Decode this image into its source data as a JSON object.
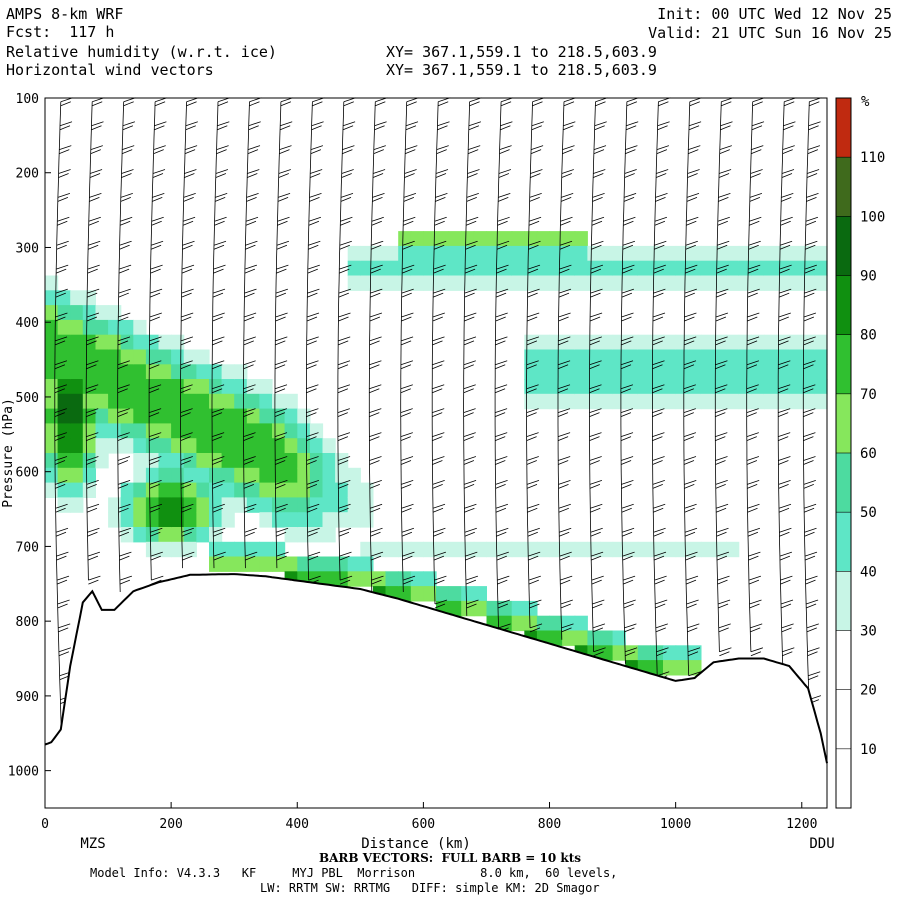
{
  "header": {
    "model": "AMPS 8-km WRF",
    "fcst": "Fcst:  117 h",
    "field1": "Relative humidity (w.r.t. ice)",
    "field2": "Horizontal wind vectors",
    "init": "Init: 00 UTC Wed 12 Nov 25",
    "valid": "Valid: 21 UTC Sun 16 Nov 25",
    "xy1": "XY= 367.1,559.1 to 218.5,603.9",
    "xy2": "XY= 367.1,559.1 to 218.5,603.9"
  },
  "chart_data": {
    "type": "heatmap",
    "title": "Relative humidity (w.r.t. ice) cross-section with horizontal wind barbs",
    "xlabel": "Distance (km)",
    "ylabel": "Pressure (hPa)",
    "xlim": [
      0,
      1240
    ],
    "ylim": [
      1050,
      100
    ],
    "x_ticks": [
      0,
      200,
      400,
      600,
      800,
      1000,
      1200
    ],
    "y_ticks": [
      100,
      200,
      300,
      400,
      500,
      600,
      700,
      800,
      900,
      1000
    ],
    "x_endpoints": {
      "left": "MZS",
      "right": "DDU"
    },
    "colorbar": {
      "unit": "%",
      "levels": [
        10,
        20,
        30,
        40,
        50,
        60,
        70,
        80,
        90,
        100,
        110
      ],
      "colors": [
        "#ffffff",
        "#ffffff",
        "#ffffff",
        "#c8f5e6",
        "#5ee6c6",
        "#4ddba0",
        "#86e75c",
        "#30c030",
        "#109010",
        "#0a6a10",
        "#3f6a1c",
        "#c02a10"
      ]
    },
    "terrain_hpa": [
      [
        0,
        965
      ],
      [
        10,
        962
      ],
      [
        25,
        945
      ],
      [
        40,
        860
      ],
      [
        60,
        775
      ],
      [
        75,
        760
      ],
      [
        90,
        785
      ],
      [
        110,
        785
      ],
      [
        140,
        760
      ],
      [
        180,
        748
      ],
      [
        230,
        738
      ],
      [
        300,
        737
      ],
      [
        350,
        740
      ],
      [
        420,
        748
      ],
      [
        500,
        757
      ],
      [
        560,
        770
      ],
      [
        640,
        790
      ],
      [
        720,
        810
      ],
      [
        800,
        830
      ],
      [
        860,
        845
      ],
      [
        900,
        855
      ],
      [
        960,
        870
      ],
      [
        1000,
        880
      ],
      [
        1030,
        876
      ],
      [
        1060,
        855
      ],
      [
        1100,
        850
      ],
      [
        1140,
        850
      ],
      [
        1180,
        860
      ],
      [
        1210,
        890
      ],
      [
        1230,
        950
      ],
      [
        1240,
        990
      ]
    ],
    "wind_barb_columns_km": [
      25,
      75,
      125,
      175,
      225,
      275,
      325,
      375,
      425,
      475,
      525,
      575,
      625,
      675,
      725,
      775,
      825,
      875,
      925,
      975,
      1025,
      1075,
      1125,
      1175,
      1215
    ],
    "barb_legend": "BARB VECTORS:  FULL BARB = 10 kts"
  },
  "footer": {
    "model_info": "Model Info: V4.3.3   KF     MYJ PBL  Morrison         8.0 km,  60 levels,",
    "physics": "LW: RRTM SW: RRTMG   DIFF: simple KM: 2D Smagor"
  }
}
